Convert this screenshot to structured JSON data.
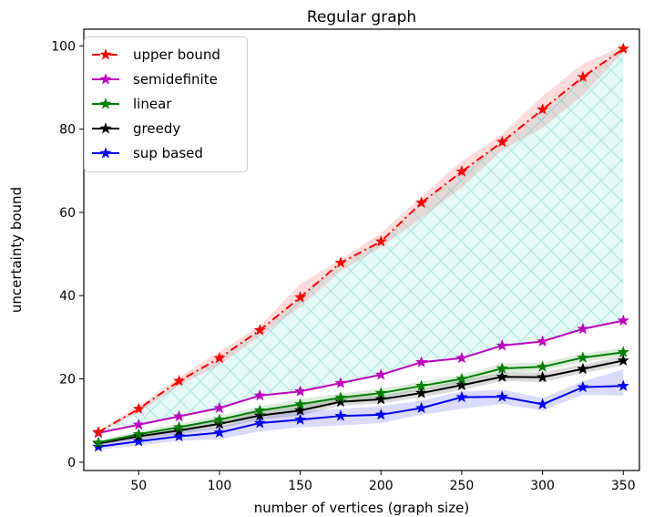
{
  "chart_data": {
    "type": "line",
    "title": "Regular graph",
    "xlabel": "number of vertices (graph size)",
    "ylabel": "uncertainty bound",
    "xlim": [
      16,
      360
    ],
    "ylim": [
      -2,
      104
    ],
    "xticks": [
      50,
      100,
      150,
      200,
      250,
      300,
      350
    ],
    "yticks": [
      0,
      20,
      40,
      60,
      80,
      100
    ],
    "grid": false,
    "legend_position": "top-left",
    "x": [
      25,
      50,
      75,
      100,
      125,
      150,
      175,
      200,
      225,
      250,
      275,
      300,
      325,
      350
    ],
    "series": [
      {
        "name": "upper bound",
        "color": "#ff0000",
        "line_style": "dashdot",
        "marker": "star",
        "values": [
          7.2,
          12.8,
          19.5,
          25.0,
          31.7,
          39.6,
          47.9,
          53.0,
          62.3,
          69.8,
          76.9,
          84.7,
          92.5,
          99.3
        ],
        "band_low": [
          7.0,
          12.0,
          18.3,
          23.4,
          30.2,
          37.3,
          45.9,
          51.6,
          58.6,
          66.0,
          74.9,
          80.3,
          88.1,
          98.6
        ],
        "band_high": [
          7.4,
          13.6,
          20.4,
          26.6,
          32.8,
          42.8,
          48.7,
          55.0,
          63.8,
          72.3,
          78.8,
          87.9,
          95.7,
          100.0
        ]
      },
      {
        "name": "semidefinite",
        "color": "#bf00bf",
        "line_style": "solid",
        "marker": "star",
        "values": [
          7.0,
          9.0,
          11.0,
          13.0,
          16.0,
          17.0,
          19.0,
          21.0,
          24.0,
          25.0,
          28.0,
          29.0,
          32.0,
          34.0
        ]
      },
      {
        "name": "linear",
        "color": "#008000",
        "line_style": "solid",
        "marker": "star",
        "values": [
          4.7,
          6.7,
          8.4,
          10.2,
          12.4,
          13.9,
          15.5,
          16.6,
          18.3,
          20.0,
          22.5,
          22.9,
          25.1,
          26.4
        ],
        "band_low": [
          4.2,
          6.0,
          7.6,
          9.2,
          11.4,
          12.7,
          14.5,
          15.6,
          17.3,
          19.0,
          21.3,
          21.9,
          24.1,
          25.4
        ],
        "band_high": [
          5.2,
          7.4,
          9.2,
          11.2,
          13.4,
          15.1,
          16.5,
          17.6,
          19.3,
          21.0,
          23.7,
          23.9,
          26.1,
          27.4
        ]
      },
      {
        "name": "greedy",
        "color": "#000000",
        "line_style": "solid",
        "marker": "star",
        "values": [
          4.5,
          6.2,
          7.6,
          9.2,
          11.2,
          12.4,
          14.5,
          15.1,
          16.6,
          18.5,
          20.5,
          20.4,
          22.4,
          24.4
        ],
        "band_low": [
          4.0,
          5.5,
          6.8,
          8.2,
          10.2,
          11.2,
          13.5,
          14.1,
          15.6,
          17.3,
          19.5,
          19.2,
          21.4,
          23.2
        ],
        "band_high": [
          5.0,
          6.9,
          8.4,
          10.2,
          12.2,
          13.6,
          15.5,
          16.1,
          17.6,
          19.7,
          21.5,
          21.6,
          23.4,
          25.6
        ]
      },
      {
        "name": "sup based",
        "color": "#0000ff",
        "line_style": "solid",
        "marker": "star",
        "values": [
          3.7,
          5.0,
          6.2,
          7.1,
          9.4,
          10.2,
          11.1,
          11.4,
          13.0,
          15.6,
          15.7,
          13.9,
          18.0,
          18.3
        ],
        "band_low": [
          3.0,
          4.0,
          5.2,
          5.5,
          7.4,
          8.4,
          8.8,
          9.4,
          11.4,
          12.8,
          14.0,
          12.4,
          16.2,
          16.0
        ],
        "band_high": [
          4.4,
          6.0,
          7.4,
          8.5,
          10.8,
          12.2,
          12.8,
          13.4,
          14.8,
          17.0,
          17.4,
          15.4,
          19.4,
          22.3
        ]
      }
    ],
    "shaded_region": {
      "between": [
        "semidefinite",
        "upper bound"
      ],
      "fill_color": "#00c8b4",
      "hatch": "crosshatch"
    }
  }
}
